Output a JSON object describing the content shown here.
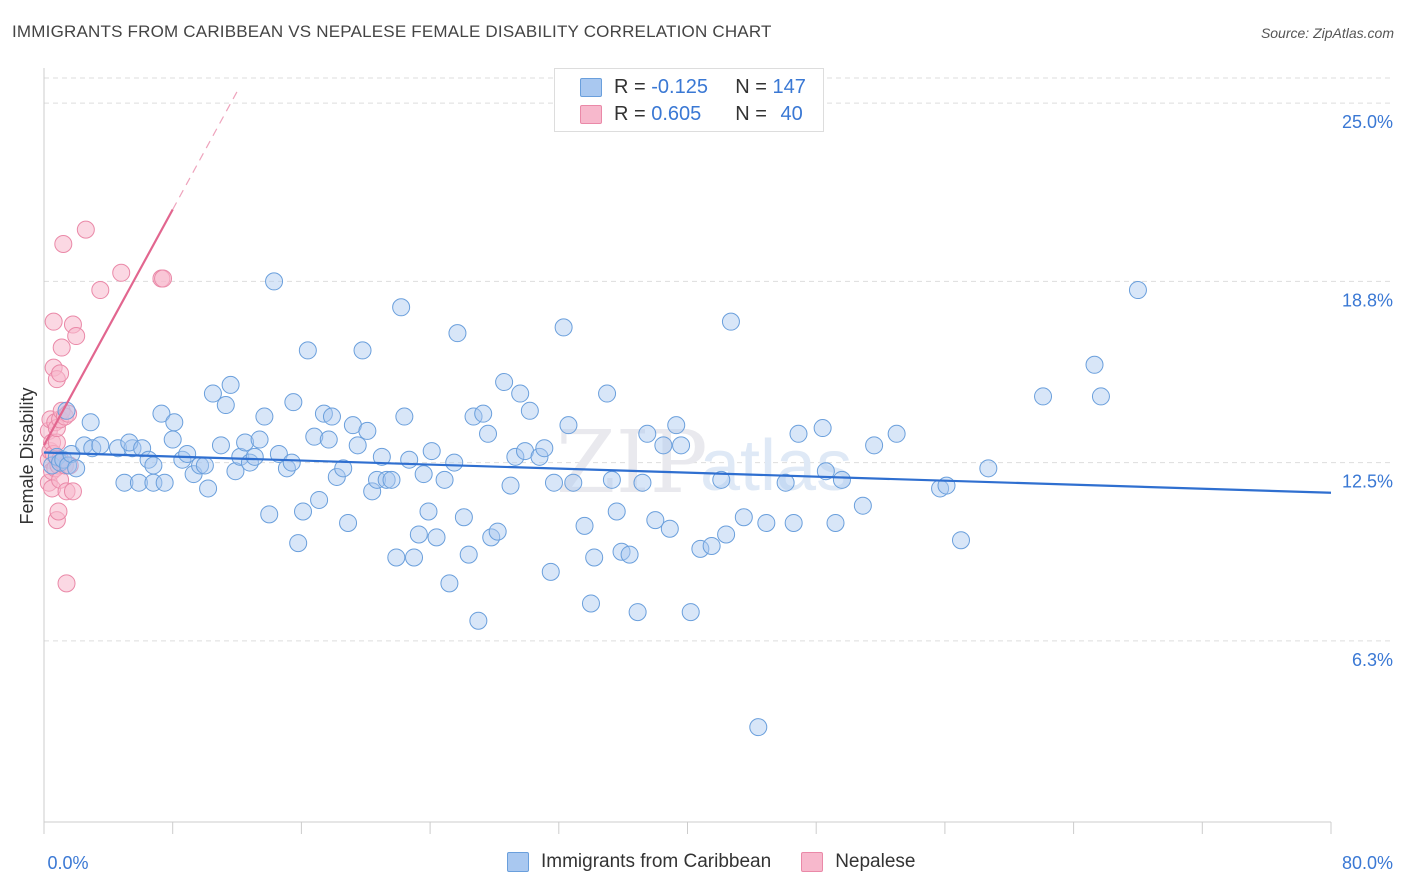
{
  "header": {
    "title": "IMMIGRANTS FROM CARIBBEAN VS NEPALESE FEMALE DISABILITY CORRELATION CHART",
    "source": "Source: ZipAtlas.com"
  },
  "legend_top": {
    "rows": [
      {
        "r_label": "R = ",
        "r_value": "-0.125",
        "n_label": "N = ",
        "n_value": "147"
      },
      {
        "r_label": "R = ",
        "r_value": "0.605",
        "n_label": "N = ",
        "n_value": "40"
      }
    ]
  },
  "legend_bottom": {
    "items": [
      {
        "label": "Immigrants from Caribbean"
      },
      {
        "label": "Nepalese"
      }
    ]
  },
  "watermark": {
    "text1": "ZIP",
    "text2": "atlas"
  },
  "colors": {
    "blue_fill": "#a9c8f0",
    "blue_stroke": "#6a9fdc",
    "blue_line": "#2f6fd0",
    "pink_fill": "#f7b8cc",
    "pink_stroke": "#ea89a8",
    "pink_line": "#e2668f",
    "axis_label": "#3a78d4",
    "grid": "#dddddd"
  },
  "chart_data": {
    "type": "scatter",
    "ylabel": "Female Disability",
    "xlabel": "",
    "xlim": [
      0,
      80
    ],
    "ylim": [
      0,
      26.5
    ],
    "x_tick_labels": [
      "0.0%",
      "80.0%"
    ],
    "y_ticks": [
      6.3,
      12.5,
      18.8,
      25.0
    ],
    "y_tick_labels": [
      "6.3%",
      "12.5%",
      "18.8%",
      "25.0%"
    ],
    "grid": true,
    "series": [
      {
        "name": "Immigrants from Caribbean",
        "trend": {
          "x": [
            0,
            80
          ],
          "y": [
            12.85,
            11.45
          ]
        },
        "points": [
          [
            0.5,
            12.4
          ],
          [
            0.8,
            12.7
          ],
          [
            1.0,
            12.5
          ],
          [
            1.2,
            12.6
          ],
          [
            1.5,
            12.4
          ],
          [
            1.7,
            12.8
          ],
          [
            2.0,
            12.3
          ],
          [
            2.5,
            13.1
          ],
          [
            3.0,
            13.0
          ],
          [
            3.5,
            13.1
          ],
          [
            1.4,
            14.3
          ],
          [
            2.9,
            13.9
          ],
          [
            4.6,
            13.0
          ],
          [
            5.5,
            13.0
          ],
          [
            5.3,
            13.2
          ],
          [
            6.1,
            13.0
          ],
          [
            5.0,
            11.8
          ],
          [
            5.9,
            11.8
          ],
          [
            6.8,
            11.8
          ],
          [
            7.5,
            11.8
          ],
          [
            6.5,
            12.6
          ],
          [
            6.8,
            12.4
          ],
          [
            7.3,
            14.2
          ],
          [
            8.1,
            13.9
          ],
          [
            8.0,
            13.3
          ],
          [
            8.6,
            12.6
          ],
          [
            8.9,
            12.8
          ],
          [
            9.3,
            12.1
          ],
          [
            9.7,
            12.4
          ],
          [
            10.0,
            12.4
          ],
          [
            10.2,
            11.6
          ],
          [
            10.5,
            14.9
          ],
          [
            11.0,
            13.1
          ],
          [
            11.3,
            14.5
          ],
          [
            11.6,
            15.2
          ],
          [
            11.9,
            12.2
          ],
          [
            12.2,
            12.7
          ],
          [
            12.5,
            13.2
          ],
          [
            12.8,
            12.5
          ],
          [
            13.1,
            12.7
          ],
          [
            13.4,
            13.3
          ],
          [
            13.7,
            14.1
          ],
          [
            14.0,
            10.7
          ],
          [
            14.3,
            18.8
          ],
          [
            14.6,
            12.8
          ],
          [
            15.1,
            12.3
          ],
          [
            15.4,
            12.5
          ],
          [
            15.5,
            14.6
          ],
          [
            15.8,
            9.7
          ],
          [
            16.1,
            10.8
          ],
          [
            16.4,
            16.4
          ],
          [
            16.8,
            13.4
          ],
          [
            17.1,
            11.2
          ],
          [
            17.4,
            14.2
          ],
          [
            17.7,
            13.3
          ],
          [
            17.9,
            14.1
          ],
          [
            18.2,
            12.0
          ],
          [
            18.6,
            12.3
          ],
          [
            18.9,
            10.4
          ],
          [
            19.2,
            13.8
          ],
          [
            19.5,
            13.1
          ],
          [
            19.8,
            16.4
          ],
          [
            20.1,
            13.6
          ],
          [
            20.4,
            11.5
          ],
          [
            20.7,
            11.9
          ],
          [
            21.0,
            12.7
          ],
          [
            21.3,
            11.9
          ],
          [
            21.6,
            11.9
          ],
          [
            21.9,
            9.2
          ],
          [
            22.2,
            17.9
          ],
          [
            22.4,
            14.1
          ],
          [
            22.7,
            12.6
          ],
          [
            23.0,
            9.2
          ],
          [
            23.3,
            10.0
          ],
          [
            23.6,
            12.1
          ],
          [
            23.9,
            10.8
          ],
          [
            24.1,
            12.9
          ],
          [
            24.4,
            9.9
          ],
          [
            24.9,
            11.9
          ],
          [
            25.2,
            8.3
          ],
          [
            25.5,
            12.5
          ],
          [
            25.7,
            17.0
          ],
          [
            26.1,
            10.6
          ],
          [
            26.4,
            9.3
          ],
          [
            26.7,
            14.1
          ],
          [
            27.0,
            7.0
          ],
          [
            27.3,
            14.2
          ],
          [
            27.6,
            13.5
          ],
          [
            27.8,
            9.9
          ],
          [
            28.2,
            10.1
          ],
          [
            28.6,
            15.3
          ],
          [
            29.0,
            11.7
          ],
          [
            29.3,
            12.7
          ],
          [
            29.6,
            14.9
          ],
          [
            29.9,
            12.9
          ],
          [
            30.2,
            14.3
          ],
          [
            30.8,
            12.7
          ],
          [
            31.1,
            13.0
          ],
          [
            31.5,
            8.7
          ],
          [
            31.7,
            11.8
          ],
          [
            32.3,
            17.2
          ],
          [
            32.6,
            13.8
          ],
          [
            32.9,
            11.8
          ],
          [
            33.6,
            10.3
          ],
          [
            34.0,
            7.6
          ],
          [
            34.2,
            9.2
          ],
          [
            35.0,
            14.9
          ],
          [
            35.3,
            11.9
          ],
          [
            35.6,
            10.8
          ],
          [
            35.9,
            9.4
          ],
          [
            36.4,
            9.3
          ],
          [
            36.9,
            7.3
          ],
          [
            37.2,
            11.8
          ],
          [
            37.5,
            13.5
          ],
          [
            38.0,
            10.5
          ],
          [
            38.5,
            13.1
          ],
          [
            38.9,
            10.2
          ],
          [
            39.3,
            13.8
          ],
          [
            39.6,
            13.1
          ],
          [
            40.2,
            7.3
          ],
          [
            40.8,
            9.5
          ],
          [
            41.5,
            9.6
          ],
          [
            42.1,
            11.9
          ],
          [
            42.4,
            10.0
          ],
          [
            42.7,
            17.4
          ],
          [
            43.5,
            10.6
          ],
          [
            44.4,
            3.3
          ],
          [
            44.9,
            10.4
          ],
          [
            46.1,
            11.8
          ],
          [
            46.6,
            10.4
          ],
          [
            46.9,
            13.5
          ],
          [
            48.4,
            13.7
          ],
          [
            48.6,
            12.2
          ],
          [
            49.2,
            10.4
          ],
          [
            49.6,
            11.9
          ],
          [
            50.9,
            11.0
          ],
          [
            51.6,
            13.1
          ],
          [
            53.0,
            13.5
          ],
          [
            55.7,
            11.6
          ],
          [
            56.1,
            11.7
          ],
          [
            57.0,
            9.8
          ],
          [
            58.7,
            12.3
          ],
          [
            62.1,
            14.8
          ],
          [
            65.3,
            15.9
          ],
          [
            65.7,
            14.8
          ],
          [
            68.0,
            18.5
          ]
        ]
      },
      {
        "name": "Nepalese",
        "trend": {
          "x": [
            0,
            8
          ],
          "y": [
            13.1,
            21.3
          ]
        },
        "trend_ext": {
          "x": [
            8,
            12
          ],
          "y": [
            21.3,
            25.4
          ]
        },
        "points": [
          [
            0.3,
            12.6
          ],
          [
            0.3,
            11.8
          ],
          [
            0.3,
            13.6
          ],
          [
            0.4,
            14.0
          ],
          [
            0.4,
            12.9
          ],
          [
            0.5,
            13.2
          ],
          [
            0.5,
            11.6
          ],
          [
            0.5,
            12.2
          ],
          [
            0.6,
            15.8
          ],
          [
            0.6,
            12.8
          ],
          [
            0.6,
            17.4
          ],
          [
            0.7,
            13.9
          ],
          [
            0.7,
            12.3
          ],
          [
            0.8,
            13.2
          ],
          [
            0.8,
            13.7
          ],
          [
            0.8,
            15.4
          ],
          [
            0.8,
            10.5
          ],
          [
            0.9,
            12.4
          ],
          [
            0.9,
            10.8
          ],
          [
            1.0,
            11.9
          ],
          [
            1.0,
            14.0
          ],
          [
            1.0,
            12.6
          ],
          [
            1.0,
            15.6
          ],
          [
            1.1,
            16.5
          ],
          [
            1.1,
            14.3
          ],
          [
            1.2,
            20.1
          ],
          [
            1.3,
            14.1
          ],
          [
            1.3,
            12.4
          ],
          [
            1.4,
            11.5
          ],
          [
            1.4,
            8.3
          ],
          [
            1.5,
            14.2
          ],
          [
            1.6,
            12.4
          ],
          [
            1.8,
            11.5
          ],
          [
            1.8,
            17.3
          ],
          [
            2.0,
            16.9
          ],
          [
            2.6,
            20.6
          ],
          [
            3.5,
            18.5
          ],
          [
            4.8,
            19.1
          ],
          [
            7.3,
            18.9
          ],
          [
            7.4,
            18.9
          ]
        ]
      }
    ]
  }
}
